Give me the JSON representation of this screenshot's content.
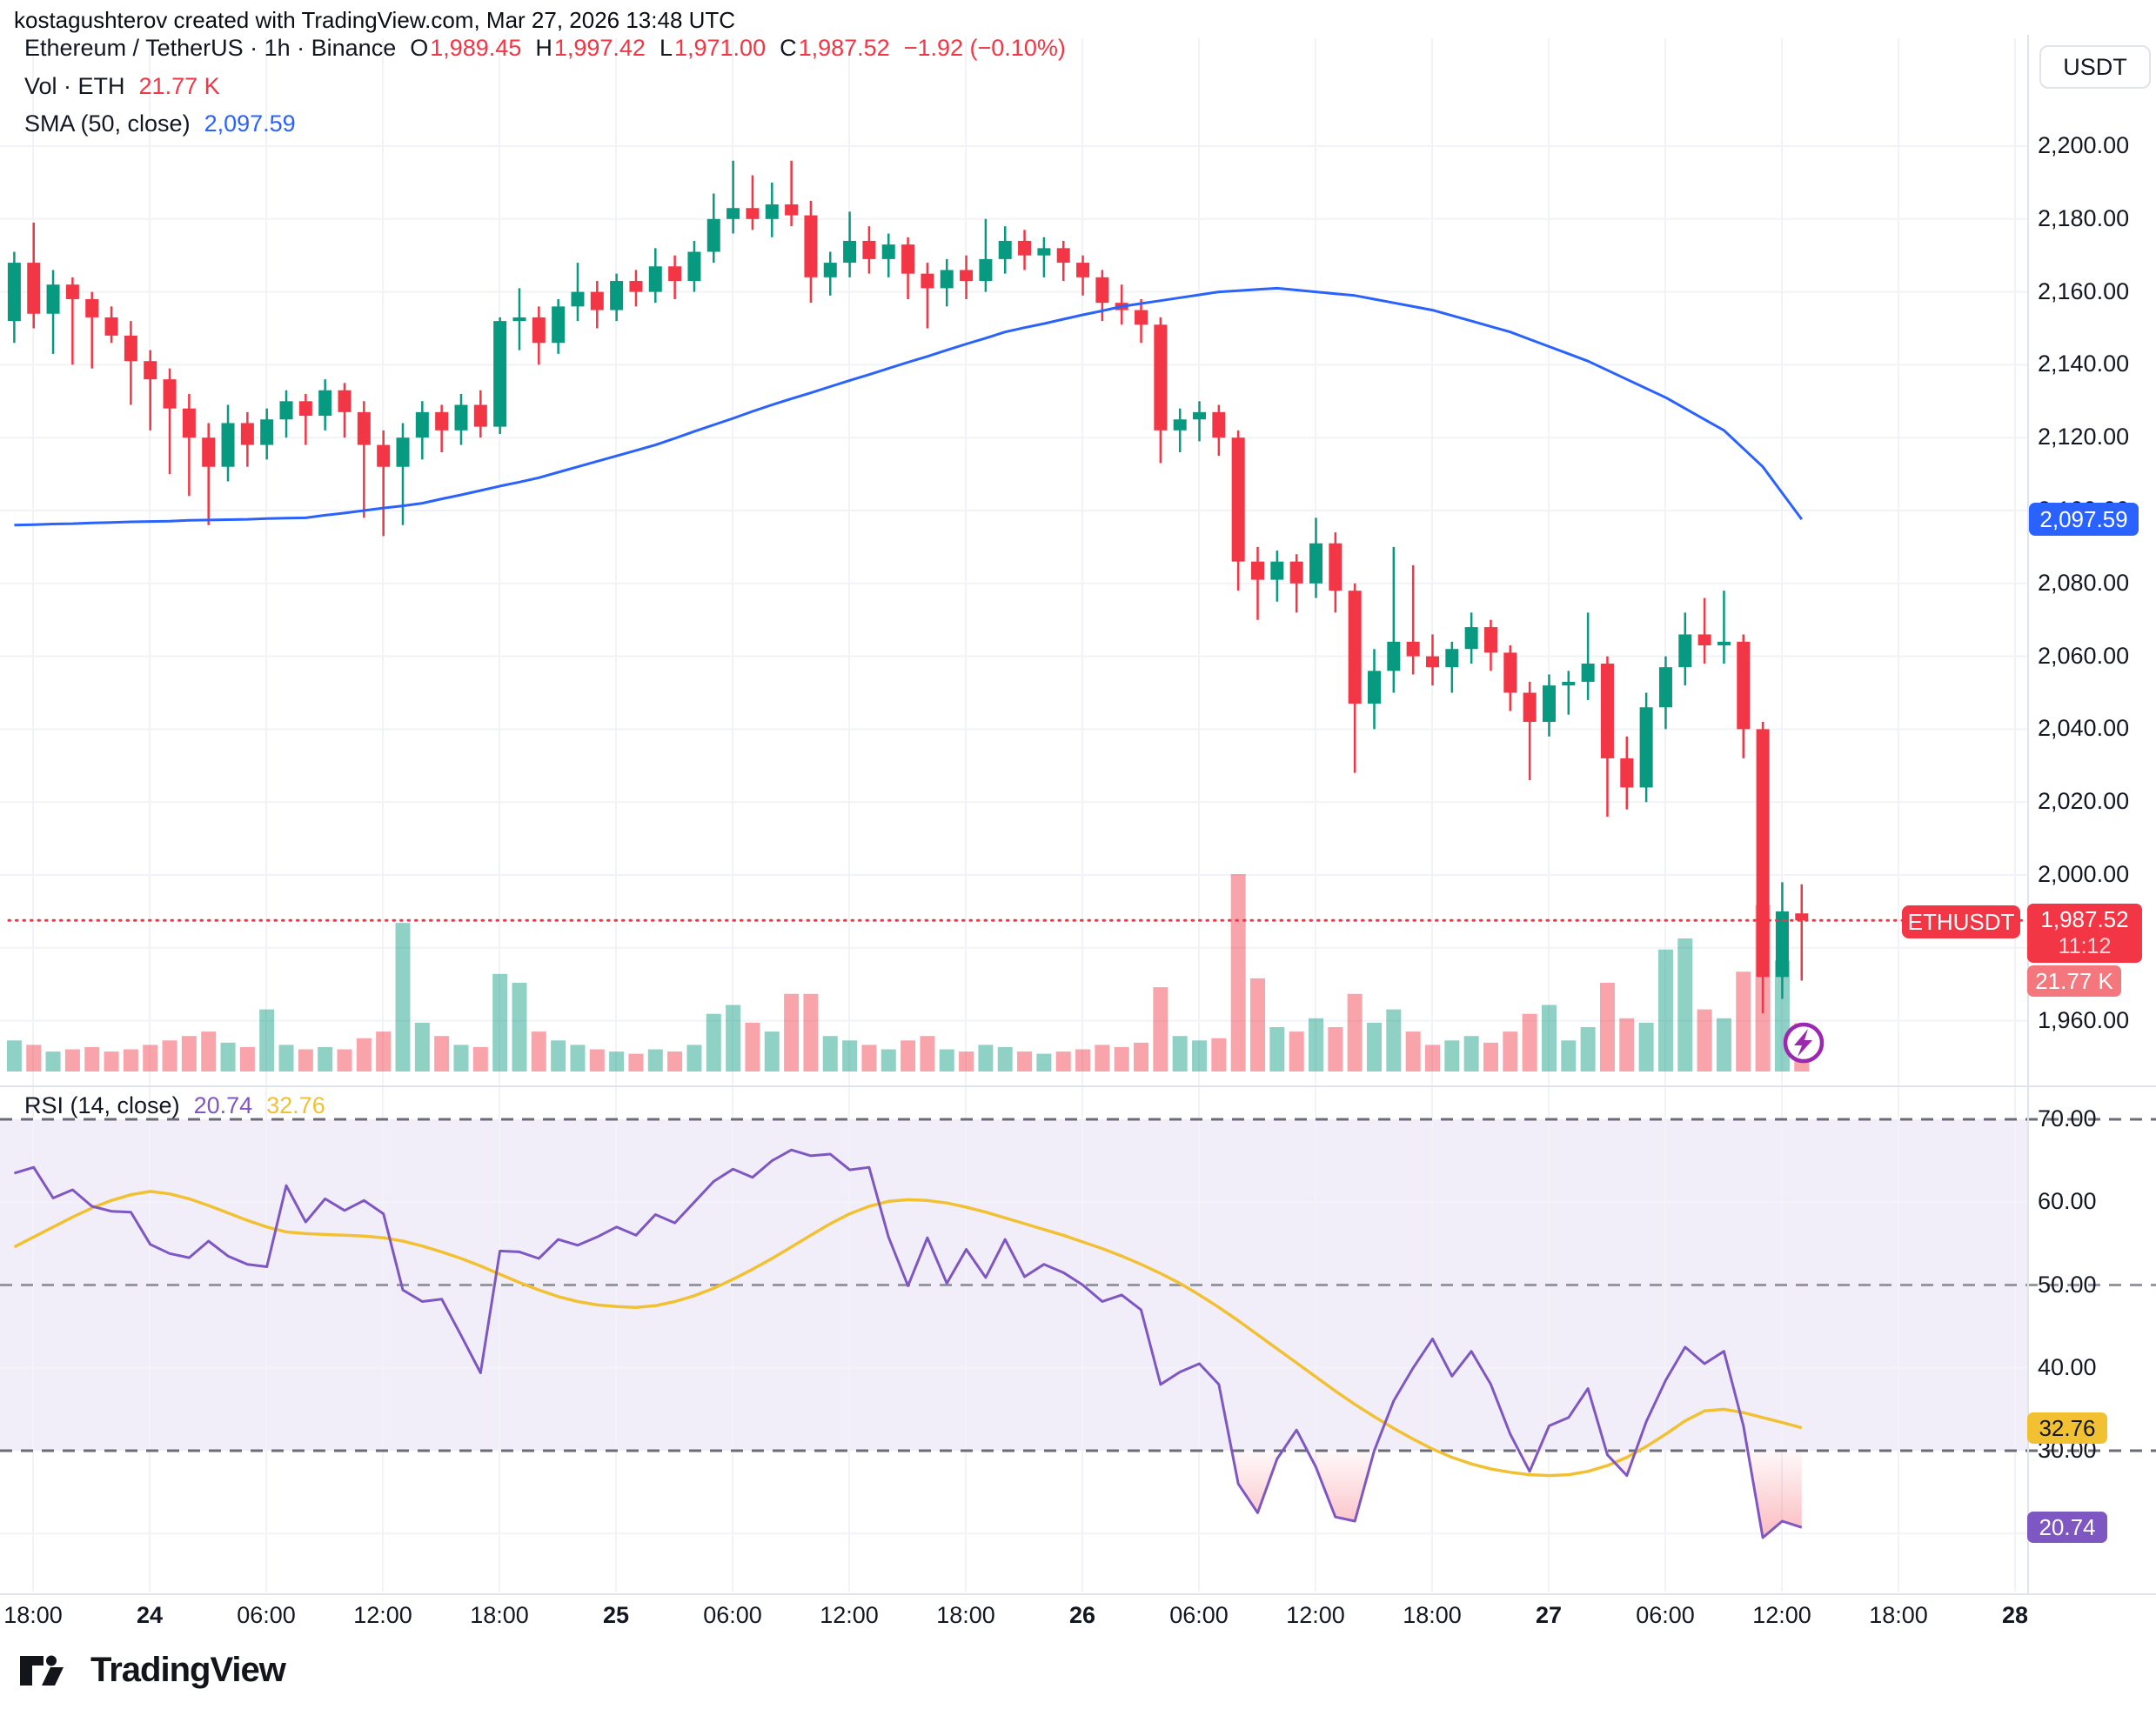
{
  "attribution": "kostagushterov created with TradingView.com, Mar 27, 2026 13:48 UTC",
  "header": {
    "symbol_title": "Ethereum / TetherUS · 1h · Binance",
    "ohlc": {
      "o_label": "O",
      "o": "1,989.45",
      "h_label": "H",
      "h": "1,997.42",
      "l_label": "L",
      "l": "1,971.00",
      "c_label": "C",
      "c": "1,987.52",
      "change": "−1.92 (−0.10%)"
    },
    "vol_label": "Vol · ETH",
    "vol_value": "21.77 K",
    "sma_label": "SMA (50, close)",
    "sma_value": "2,097.59"
  },
  "rsi_header": {
    "label": "RSI (14, close)",
    "rsi_value": "20.74",
    "ma_value": "32.76"
  },
  "price_axis": {
    "currency": "USDT",
    "labels": [
      "2,200.00",
      "2,180.00",
      "2,160.00",
      "2,140.00",
      "2,120.00",
      "2,100.00",
      "2,080.00",
      "2,060.00",
      "2,040.00",
      "2,020.00",
      "2,000.00",
      "1,980.00",
      "1,960.00"
    ],
    "values": [
      2200,
      2180,
      2160,
      2140,
      2120,
      2100,
      2080,
      2060,
      2040,
      2020,
      2000,
      1980,
      1960
    ]
  },
  "rsi_axis": {
    "labels": [
      "70.00",
      "60.00",
      "50.00",
      "40.00",
      "30.00"
    ],
    "values": [
      70,
      60,
      50,
      40,
      30
    ]
  },
  "time_axis": {
    "labels": [
      "18:00",
      "24",
      "06:00",
      "12:00",
      "18:00",
      "25",
      "06:00",
      "12:00",
      "18:00",
      "26",
      "06:00",
      "12:00",
      "18:00",
      "27",
      "06:00",
      "12:00",
      "18:00",
      "28"
    ],
    "bold": [
      false,
      true,
      false,
      false,
      false,
      true,
      false,
      false,
      false,
      true,
      false,
      false,
      false,
      true,
      false,
      false,
      false,
      true
    ]
  },
  "tags": {
    "sma": {
      "text": "2,097.59",
      "value": 2097.59
    },
    "symbol": {
      "text": "ETHUSDT"
    },
    "price": {
      "text": "1,987.52",
      "value": 1987.52,
      "countdown": "11:12"
    },
    "volume": {
      "text": "21.77 K"
    },
    "rsi": {
      "text": "20.74",
      "value": 20.74
    },
    "rsi_ma": {
      "text": "32.76",
      "value": 32.76
    }
  },
  "footer": {
    "brand": "TradingView"
  },
  "colors": {
    "up": "#089981",
    "down": "#f23645",
    "vol_up": "rgba(8,153,129,0.45)",
    "vol_down": "rgba(242,54,69,0.45)",
    "sma": "#2962ff",
    "rsi_line": "#7e57c2",
    "rsi_ma_line": "#f2c132",
    "grid": "#f1f3f8",
    "band": "rgba(126,87,194,0.10)",
    "dashed_strong": "#6a6d78",
    "dashed_mid": "#9598a1",
    "price_line": "#f23645",
    "lightning": "#9c27b0"
  },
  "chart_data": {
    "type": "candlestick",
    "title": "Ethereum / TetherUS",
    "symbol": "ETHUSDT",
    "exchange": "Binance",
    "interval": "1h",
    "start_time": "2026-03-23 17:00 UTC",
    "end_time": "2026-03-27 13:00 UTC",
    "price_axis_range": [
      1950,
      2210
    ],
    "rsi_levels": {
      "overbought": 70,
      "mid": 50,
      "oversold": 30
    },
    "last_bar": {
      "open": 1989.45,
      "high": 1997.42,
      "low": 1971.0,
      "close": 1987.52,
      "change": -1.92,
      "change_pct": -0.1,
      "volume_k": 21.77
    },
    "sma_50_last": 2097.59,
    "rsi_last": 20.74,
    "rsi_ma_last": 32.76,
    "candles": [
      [
        2152,
        2171,
        2146,
        2168,
        14
      ],
      [
        2168,
        2179,
        2150,
        2154,
        12
      ],
      [
        2154,
        2166,
        2143,
        2162,
        9
      ],
      [
        2162,
        2164,
        2140,
        2158,
        10
      ],
      [
        2158,
        2160,
        2139,
        2153,
        11
      ],
      [
        2153,
        2156,
        2146,
        2148,
        9
      ],
      [
        2148,
        2152,
        2129,
        2141,
        10
      ],
      [
        2141,
        2144,
        2122,
        2136,
        12
      ],
      [
        2136,
        2139,
        2110,
        2128,
        14
      ],
      [
        2128,
        2132,
        2104,
        2120,
        16
      ],
      [
        2120,
        2124,
        2096,
        2112,
        18
      ],
      [
        2112,
        2129,
        2108,
        2124,
        13
      ],
      [
        2124,
        2127,
        2112,
        2118,
        11
      ],
      [
        2118,
        2128,
        2114,
        2125,
        28
      ],
      [
        2125,
        2133,
        2120,
        2130,
        12
      ],
      [
        2130,
        2132,
        2118,
        2126,
        10
      ],
      [
        2126,
        2136,
        2122,
        2133,
        11
      ],
      [
        2133,
        2135,
        2120,
        2127,
        10
      ],
      [
        2127,
        2130,
        2098,
        2118,
        15
      ],
      [
        2118,
        2122,
        2093,
        2112,
        18
      ],
      [
        2112,
        2124,
        2096,
        2120,
        67
      ],
      [
        2120,
        2130,
        2114,
        2127,
        22
      ],
      [
        2127,
        2129,
        2116,
        2122,
        16
      ],
      [
        2122,
        2132,
        2118,
        2129,
        12
      ],
      [
        2129,
        2133,
        2120,
        2123,
        11
      ],
      [
        2123,
        2153,
        2121,
        2152,
        44
      ],
      [
        2152,
        2161,
        2144,
        2153,
        40
      ],
      [
        2153,
        2156,
        2140,
        2146,
        18
      ],
      [
        2146,
        2158,
        2143,
        2156,
        14
      ],
      [
        2156,
        2168,
        2152,
        2160,
        12
      ],
      [
        2160,
        2163,
        2150,
        2155,
        10
      ],
      [
        2155,
        2165,
        2152,
        2163,
        9
      ],
      [
        2163,
        2166,
        2156,
        2160,
        8
      ],
      [
        2160,
        2172,
        2157,
        2167,
        10
      ],
      [
        2167,
        2170,
        2158,
        2163,
        9
      ],
      [
        2163,
        2174,
        2160,
        2171,
        12
      ],
      [
        2171,
        2187,
        2168,
        2180,
        26
      ],
      [
        2180,
        2196,
        2176,
        2183,
        30
      ],
      [
        2183,
        2192,
        2177,
        2180,
        22
      ],
      [
        2180,
        2190,
        2175,
        2184,
        18
      ],
      [
        2184,
        2196,
        2178,
        2181,
        35
      ],
      [
        2181,
        2185,
        2157,
        2164,
        35
      ],
      [
        2164,
        2171,
        2159,
        2168,
        16
      ],
      [
        2168,
        2182,
        2164,
        2174,
        14
      ],
      [
        2174,
        2178,
        2165,
        2169,
        12
      ],
      [
        2169,
        2176,
        2164,
        2173,
        10
      ],
      [
        2173,
        2175,
        2158,
        2165,
        14
      ],
      [
        2165,
        2168,
        2150,
        2161,
        16
      ],
      [
        2161,
        2169,
        2156,
        2166,
        10
      ],
      [
        2166,
        2170,
        2158,
        2163,
        9
      ],
      [
        2163,
        2180,
        2160,
        2169,
        12
      ],
      [
        2169,
        2178,
        2165,
        2174,
        11
      ],
      [
        2174,
        2177,
        2166,
        2170,
        9
      ],
      [
        2170,
        2175,
        2164,
        2172,
        8
      ],
      [
        2172,
        2174,
        2163,
        2168,
        9
      ],
      [
        2168,
        2170,
        2159,
        2164,
        10
      ],
      [
        2164,
        2166,
        2152,
        2157,
        12
      ],
      [
        2157,
        2162,
        2151,
        2155,
        11
      ],
      [
        2155,
        2158,
        2146,
        2151,
        13
      ],
      [
        2151,
        2153,
        2113,
        2122,
        38
      ],
      [
        2122,
        2128,
        2116,
        2125,
        16
      ],
      [
        2125,
        2130,
        2119,
        2127,
        14
      ],
      [
        2127,
        2129,
        2115,
        2120,
        15
      ],
      [
        2120,
        2122,
        2078,
        2086,
        89
      ],
      [
        2086,
        2090,
        2070,
        2081,
        42
      ],
      [
        2081,
        2089,
        2075,
        2086,
        20
      ],
      [
        2086,
        2088,
        2072,
        2080,
        18
      ],
      [
        2080,
        2098,
        2076,
        2091,
        24
      ],
      [
        2091,
        2094,
        2072,
        2078,
        20
      ],
      [
        2078,
        2080,
        2028,
        2047,
        35
      ],
      [
        2047,
        2062,
        2040,
        2056,
        22
      ],
      [
        2056,
        2090,
        2050,
        2064,
        28
      ],
      [
        2064,
        2085,
        2055,
        2060,
        18
      ],
      [
        2060,
        2066,
        2052,
        2057,
        12
      ],
      [
        2057,
        2064,
        2050,
        2062,
        14
      ],
      [
        2062,
        2072,
        2058,
        2068,
        16
      ],
      [
        2068,
        2070,
        2056,
        2061,
        13
      ],
      [
        2061,
        2063,
        2045,
        2050,
        18
      ],
      [
        2050,
        2053,
        2026,
        2042,
        26
      ],
      [
        2042,
        2055,
        2038,
        2052,
        30
      ],
      [
        2052,
        2056,
        2044,
        2053,
        14
      ],
      [
        2053,
        2072,
        2048,
        2058,
        20
      ],
      [
        2058,
        2060,
        2016,
        2032,
        40
      ],
      [
        2032,
        2038,
        2018,
        2024,
        24
      ],
      [
        2024,
        2050,
        2020,
        2046,
        22
      ],
      [
        2046,
        2060,
        2040,
        2057,
        55
      ],
      [
        2057,
        2072,
        2052,
        2066,
        60
      ],
      [
        2066,
        2076,
        2058,
        2063,
        28
      ],
      [
        2063,
        2078,
        2058,
        2064,
        24
      ],
      [
        2064,
        2066,
        2032,
        2040,
        45
      ],
      [
        2040,
        2042,
        1962,
        1972,
        75
      ],
      [
        1972,
        1998,
        1966,
        1990,
        50
      ],
      [
        1989.45,
        1997.42,
        1971.0,
        1987.52,
        21.77
      ]
    ],
    "sma_50": [
      2096,
      2096.1,
      2096.3,
      2096.4,
      2096.6,
      2096.7,
      2096.9,
      2097,
      2097.1,
      2097.3,
      2097.4,
      2097.5,
      2097.6,
      2097.8,
      2097.9,
      2098,
      2098.7,
      2099.3,
      2100,
      2100.7,
      2101.3,
      2102,
      2103.2,
      2104.3,
      2105.5,
      2106.7,
      2107.8,
      2109,
      2110.5,
      2112,
      2113.5,
      2115,
      2116.5,
      2118,
      2119.8,
      2121.7,
      2123.5,
      2125.3,
      2127.2,
      2129,
      2130.7,
      2132.3,
      2134,
      2135.7,
      2137.3,
      2139,
      2140.7,
      2142.3,
      2144,
      2145.7,
      2147.3,
      2149,
      2150.2,
      2151.3,
      2152.5,
      2153.7,
      2154.8,
      2156,
      2156.8,
      2157.6,
      2158.4,
      2159.2,
      2160,
      2160.3,
      2160.7,
      2161,
      2160.5,
      2160,
      2159.5,
      2159,
      2158,
      2157,
      2156,
      2155,
      2153.5,
      2152,
      2150.5,
      2149,
      2147,
      2145,
      2143,
      2141,
      2138.5,
      2136,
      2133.5,
      2131,
      2128,
      2125,
      2122,
      2117,
      2112,
      2104.8,
      2097.6
    ],
    "rsi_14": [
      63.5,
      64.2,
      60.5,
      61.5,
      59.5,
      58.9,
      58.8,
      54.9,
      53.8,
      53.3,
      55.3,
      53.5,
      52.5,
      52.2,
      62,
      57.6,
      60.4,
      59,
      60.2,
      58.6,
      49.4,
      48,
      48.3,
      43.9,
      39.4,
      54.1,
      54,
      53.2,
      55.5,
      54.8,
      55.8,
      57,
      56,
      58.5,
      57.5,
      60,
      62.5,
      64,
      63,
      65,
      66.3,
      65.6,
      65.8,
      63.9,
      64.2,
      55.8,
      49.9,
      55.7,
      50.2,
      54.3,
      50.9,
      55.5,
      51,
      52.5,
      51.5,
      50,
      48,
      48.8,
      47,
      38,
      39.5,
      40.5,
      38,
      26,
      22.5,
      29,
      32.5,
      28,
      22,
      21.5,
      30,
      36,
      40,
      43.5,
      39,
      42,
      38,
      32,
      27.5,
      33,
      34,
      37.5,
      29.5,
      27,
      33.5,
      38.5,
      42.5,
      40.5,
      42,
      33,
      19.5,
      21.5,
      20.74
    ],
    "rsi_ma_14": [
      54.6,
      55.8,
      57,
      58.2,
      59.3,
      60.2,
      60.9,
      61.3,
      61,
      60.4,
      59.6,
      58.7,
      57.8,
      57,
      56.4,
      56.2,
      56.1,
      56,
      55.9,
      55.7,
      55.3,
      54.7,
      54,
      53.2,
      52.3,
      51.3,
      50.3,
      49.4,
      48.6,
      48,
      47.6,
      47.4,
      47.3,
      47.5,
      48,
      48.7,
      49.6,
      50.7,
      51.9,
      53.2,
      54.6,
      56,
      57.4,
      58.6,
      59.5,
      60.1,
      60.3,
      60.2,
      59.9,
      59.4,
      58.8,
      58.1,
      57.4,
      56.7,
      56,
      55.2,
      54.4,
      53.5,
      52.5,
      51.4,
      50.2,
      48.8,
      47.3,
      45.7,
      44,
      42.3,
      40.6,
      38.9,
      37.2,
      35.6,
      34.1,
      32.7,
      31.4,
      30.2,
      29.2,
      28.4,
      27.8,
      27.4,
      27.1,
      27,
      27.1,
      27.5,
      28.2,
      29.2,
      30.5,
      32,
      33.6,
      34.8,
      35,
      34.6,
      34,
      33.4,
      32.76
    ]
  }
}
